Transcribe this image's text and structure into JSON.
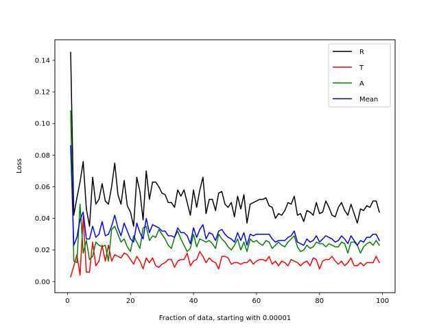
{
  "chart_data": {
    "type": "line",
    "xlabel": "Fraction of data, starting with 0.00001",
    "ylabel": "Loss",
    "xlim": [
      -4,
      104
    ],
    "ylim": [
      -0.007,
      0.153
    ],
    "xticks": [
      0,
      20,
      40,
      60,
      80,
      100
    ],
    "xtick_labels": [
      "0",
      "20",
      "40",
      "60",
      "80",
      "100"
    ],
    "yticks": [
      0.0,
      0.02,
      0.04,
      0.06,
      0.08,
      0.1,
      0.12,
      0.14
    ],
    "ytick_labels": [
      "0.00",
      "0.02",
      "0.04",
      "0.06",
      "0.08",
      "0.10",
      "0.12",
      "0.14"
    ],
    "grid": false,
    "legend_position": "top-right",
    "x": [
      1,
      2,
      3,
      4,
      5,
      6,
      7,
      8,
      9,
      10,
      11,
      12,
      13,
      14,
      15,
      16,
      17,
      18,
      19,
      20,
      21,
      22,
      23,
      24,
      25,
      26,
      27,
      28,
      29,
      30,
      31,
      32,
      33,
      34,
      35,
      36,
      37,
      38,
      39,
      40,
      41,
      42,
      43,
      44,
      45,
      46,
      47,
      48,
      49,
      50,
      51,
      52,
      53,
      54,
      55,
      56,
      57,
      58,
      59,
      60,
      61,
      62,
      63,
      64,
      65,
      66,
      67,
      68,
      69,
      70,
      71,
      72,
      73,
      74,
      75,
      76,
      77,
      78,
      79,
      80,
      81,
      82,
      83,
      84,
      85,
      86,
      87,
      88,
      89,
      90,
      91,
      92,
      93,
      94,
      95,
      96,
      97,
      98,
      99
    ],
    "series": [
      {
        "name": "R",
        "color": "#000000",
        "values": [
          0.145,
          0.042,
          0.053,
          0.063,
          0.076,
          0.046,
          0.035,
          0.066,
          0.049,
          0.052,
          0.062,
          0.051,
          0.049,
          0.06,
          0.075,
          0.055,
          0.049,
          0.064,
          0.048,
          0.044,
          0.035,
          0.066,
          0.057,
          0.039,
          0.07,
          0.052,
          0.063,
          0.063,
          0.06,
          0.056,
          0.055,
          0.05,
          0.05,
          0.047,
          0.058,
          0.054,
          0.058,
          0.05,
          0.042,
          0.058,
          0.047,
          0.058,
          0.066,
          0.043,
          0.052,
          0.052,
          0.045,
          0.056,
          0.057,
          0.049,
          0.047,
          0.05,
          0.041,
          0.054,
          0.046,
          0.055,
          0.037,
          0.049,
          0.05,
          0.051,
          0.052,
          0.052,
          0.053,
          0.048,
          0.047,
          0.04,
          0.043,
          0.042,
          0.045,
          0.05,
          0.049,
          0.054,
          0.042,
          0.043,
          0.038,
          0.045,
          0.044,
          0.042,
          0.05,
          0.043,
          0.044,
          0.051,
          0.047,
          0.042,
          0.041,
          0.047,
          0.05,
          0.045,
          0.042,
          0.049,
          0.043,
          0.037,
          0.046,
          0.045,
          0.048,
          0.047,
          0.051,
          0.051,
          0.044
        ]
      },
      {
        "name": "T",
        "color": "#ff0000",
        "values": [
          0.003,
          0.01,
          0.017,
          0.004,
          0.041,
          0.006,
          0.006,
          0.025,
          0.01,
          0.013,
          0.023,
          0.013,
          0.023,
          0.013,
          0.017,
          0.016,
          0.015,
          0.018,
          0.017,
          0.014,
          0.011,
          0.016,
          0.013,
          0.008,
          0.015,
          0.012,
          0.015,
          0.01,
          0.009,
          0.011,
          0.012,
          0.014,
          0.014,
          0.009,
          0.013,
          0.014,
          0.014,
          0.018,
          0.01,
          0.013,
          0.014,
          0.019,
          0.016,
          0.012,
          0.015,
          0.013,
          0.012,
          0.008,
          0.016,
          0.016,
          0.015,
          0.011,
          0.012,
          0.012,
          0.011,
          0.012,
          0.012,
          0.014,
          0.011,
          0.013,
          0.014,
          0.014,
          0.013,
          0.016,
          0.011,
          0.013,
          0.01,
          0.013,
          0.012,
          0.01,
          0.014,
          0.013,
          0.012,
          0.01,
          0.012,
          0.013,
          0.01,
          0.015,
          0.014,
          0.008,
          0.013,
          0.014,
          0.014,
          0.016,
          0.013,
          0.011,
          0.013,
          0.01,
          0.012,
          0.015,
          0.01,
          0.01,
          0.012,
          0.01,
          0.012,
          0.012,
          0.012,
          0.016,
          0.012
        ]
      },
      {
        "name": "A",
        "color": "#008000",
        "values": [
          0.108,
          0.013,
          0.012,
          0.049,
          0.018,
          0.026,
          0.014,
          0.016,
          0.025,
          0.023,
          0.022,
          0.023,
          0.013,
          0.033,
          0.035,
          0.03,
          0.025,
          0.027,
          0.022,
          0.019,
          0.029,
          0.025,
          0.021,
          0.034,
          0.035,
          0.026,
          0.029,
          0.028,
          0.033,
          0.03,
          0.027,
          0.023,
          0.021,
          0.028,
          0.032,
          0.027,
          0.023,
          0.019,
          0.021,
          0.03,
          0.022,
          0.027,
          0.026,
          0.025,
          0.026,
          0.024,
          0.021,
          0.03,
          0.027,
          0.025,
          0.022,
          0.02,
          0.023,
          0.027,
          0.02,
          0.025,
          0.019,
          0.027,
          0.025,
          0.026,
          0.024,
          0.023,
          0.026,
          0.025,
          0.021,
          0.023,
          0.025,
          0.023,
          0.022,
          0.025,
          0.027,
          0.029,
          0.022,
          0.019,
          0.02,
          0.023,
          0.021,
          0.022,
          0.025,
          0.024,
          0.024,
          0.022,
          0.024,
          0.023,
          0.022,
          0.022,
          0.025,
          0.024,
          0.018,
          0.025,
          0.025,
          0.023,
          0.018,
          0.022,
          0.024,
          0.025,
          0.023,
          0.026,
          0.023
        ]
      },
      {
        "name": "Mean",
        "color": "#0000ff",
        "values": [
          0.086,
          0.023,
          0.028,
          0.039,
          0.044,
          0.027,
          0.027,
          0.035,
          0.028,
          0.03,
          0.038,
          0.029,
          0.03,
          0.035,
          0.042,
          0.034,
          0.029,
          0.037,
          0.032,
          0.027,
          0.025,
          0.037,
          0.031,
          0.027,
          0.04,
          0.031,
          0.036,
          0.035,
          0.034,
          0.032,
          0.032,
          0.029,
          0.029,
          0.028,
          0.034,
          0.031,
          0.031,
          0.029,
          0.024,
          0.034,
          0.028,
          0.033,
          0.036,
          0.027,
          0.031,
          0.03,
          0.026,
          0.032,
          0.033,
          0.03,
          0.028,
          0.027,
          0.025,
          0.031,
          0.026,
          0.031,
          0.023,
          0.03,
          0.029,
          0.03,
          0.03,
          0.03,
          0.03,
          0.03,
          0.027,
          0.025,
          0.026,
          0.026,
          0.026,
          0.028,
          0.029,
          0.032,
          0.025,
          0.024,
          0.023,
          0.027,
          0.025,
          0.026,
          0.029,
          0.025,
          0.027,
          0.029,
          0.028,
          0.027,
          0.025,
          0.026,
          0.029,
          0.027,
          0.024,
          0.029,
          0.026,
          0.023,
          0.026,
          0.025,
          0.028,
          0.028,
          0.03,
          0.03,
          0.026
        ]
      }
    ]
  }
}
